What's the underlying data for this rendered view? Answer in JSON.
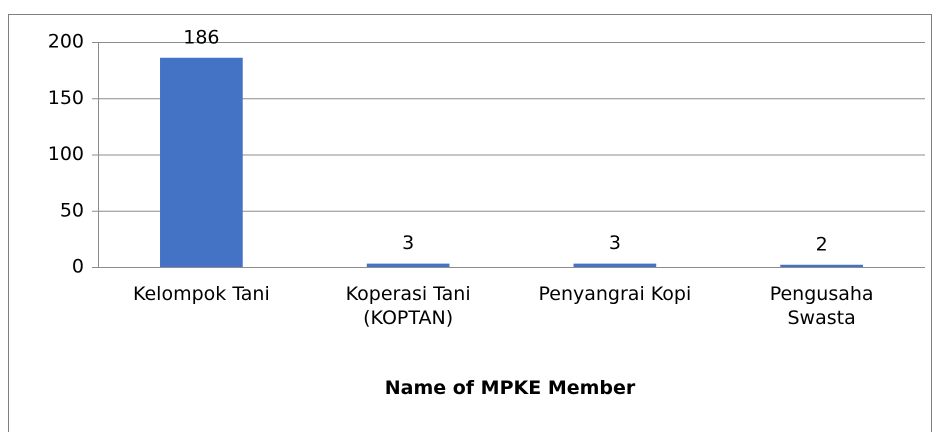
{
  "chart_data": {
    "type": "bar",
    "x_label": "Name of MPKE Member",
    "categories": [
      "Kelompok Tani",
      "Koperasi Tani (KOPTAN)",
      "Penyangrai Kopi",
      "Pengusaha Swasta"
    ],
    "values": [
      186,
      3,
      3,
      2
    ],
    "color": "#4472c4",
    "ylim": [
      0,
      200
    ],
    "yticks": [
      0,
      50,
      100,
      150,
      200
    ],
    "grid": true
  }
}
